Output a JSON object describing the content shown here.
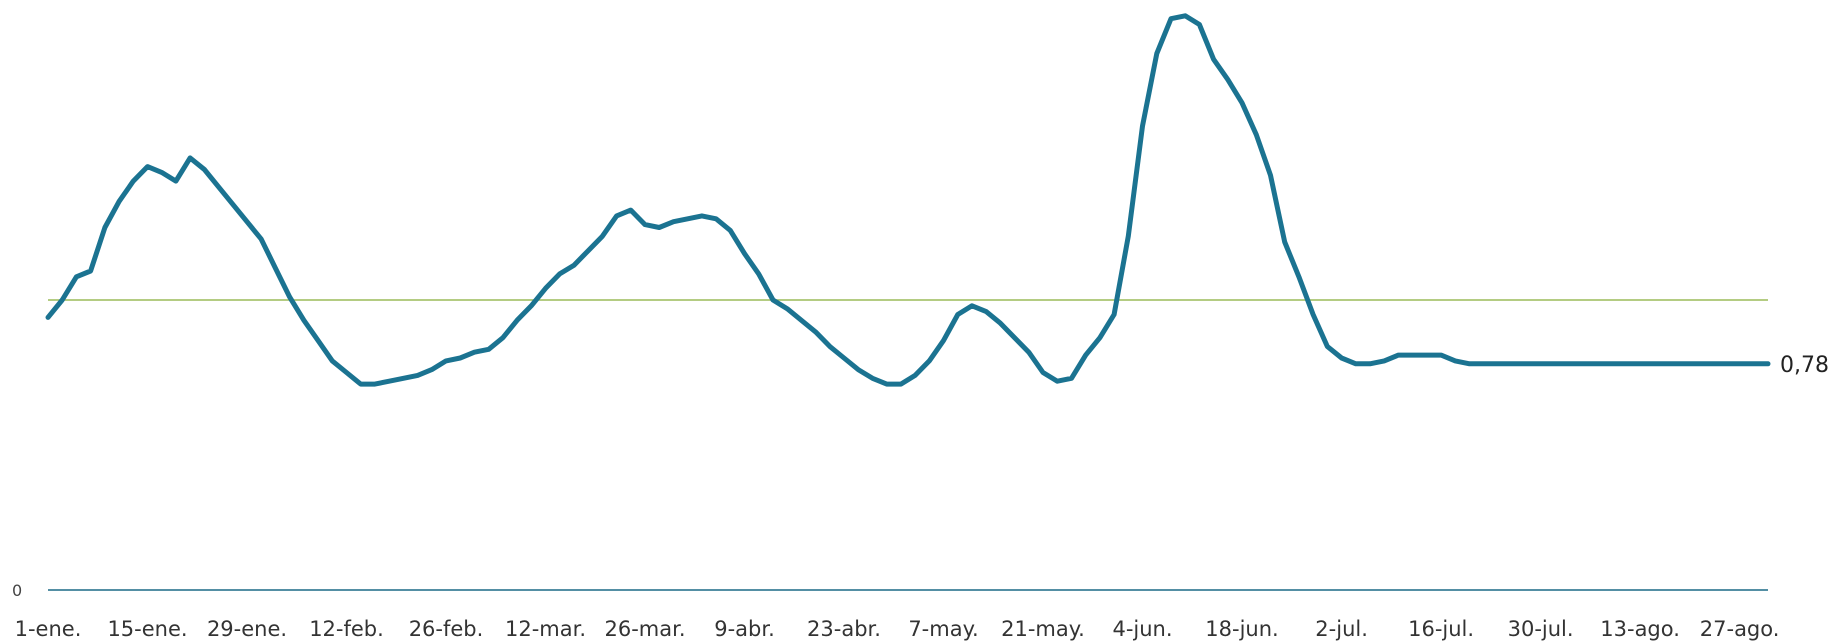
{
  "chart_data": {
    "type": "line",
    "x_tick_labels": [
      "1-ene.",
      "15-ene.",
      "29-ene.",
      "12-feb.",
      "26-feb.",
      "12-mar.",
      "26-mar.",
      "9-abr.",
      "23-abr.",
      "7-may.",
      "21-may.",
      "4-jun.",
      "18-jun.",
      "2-jul.",
      "16-jul.",
      "30-jul.",
      "13-ago.",
      "27-ago."
    ],
    "y_tick_labels": [
      "0"
    ],
    "ylim": [
      0,
      2.0
    ],
    "reference_line": 1.0,
    "end_label": "0,78",
    "grid": false,
    "colors": {
      "line": "#1b7391",
      "reference": "#9bbb59",
      "axis": "#1b6a85"
    },
    "series": [
      {
        "x_day": [
          0,
          2,
          4,
          6,
          8,
          10,
          12,
          14,
          16,
          18,
          20,
          22,
          24,
          26,
          28,
          30,
          32,
          34,
          36,
          38,
          40,
          42,
          44,
          46,
          48,
          50,
          52,
          54,
          56,
          58,
          60,
          62,
          64,
          66,
          68,
          70,
          72,
          74,
          76,
          78,
          80,
          82,
          84,
          86,
          88,
          90,
          92,
          94,
          96,
          98,
          100,
          102,
          104,
          106,
          108,
          110,
          112,
          114,
          116,
          118,
          120,
          122,
          124,
          126,
          128,
          130,
          132,
          134,
          136,
          138,
          140,
          142,
          144,
          146,
          148,
          150,
          152,
          154,
          156,
          158,
          160,
          162,
          164,
          166,
          168,
          170,
          172,
          174,
          176,
          178,
          180,
          182,
          184,
          186,
          188,
          190,
          192,
          194,
          196,
          198,
          200,
          202,
          204,
          206,
          208,
          210,
          212,
          214,
          216,
          218,
          220,
          222,
          224,
          226,
          228,
          230,
          232,
          234,
          236,
          238,
          240,
          242
        ],
        "values": [
          0.94,
          1.0,
          1.08,
          1.1,
          1.25,
          1.34,
          1.41,
          1.46,
          1.44,
          1.41,
          1.49,
          1.45,
          1.39,
          1.33,
          1.27,
          1.21,
          1.11,
          1.01,
          0.93,
          0.86,
          0.79,
          0.75,
          0.71,
          0.71,
          0.72,
          0.73,
          0.74,
          0.76,
          0.79,
          0.8,
          0.82,
          0.83,
          0.87,
          0.93,
          0.98,
          1.04,
          1.09,
          1.12,
          1.17,
          1.22,
          1.29,
          1.31,
          1.26,
          1.25,
          1.27,
          1.28,
          1.29,
          1.28,
          1.24,
          1.16,
          1.09,
          1.0,
          0.97,
          0.93,
          0.89,
          0.84,
          0.8,
          0.76,
          0.73,
          0.71,
          0.71,
          0.74,
          0.79,
          0.86,
          0.95,
          0.98,
          0.96,
          0.92,
          0.87,
          0.82,
          0.75,
          0.72,
          0.73,
          0.81,
          0.87,
          0.95,
          1.22,
          1.6,
          1.85,
          1.97,
          1.98,
          1.95,
          1.83,
          1.76,
          1.68,
          1.57,
          1.43,
          1.2,
          1.08,
          0.95,
          0.84,
          0.8,
          0.78,
          0.78,
          0.79,
          0.81,
          0.81,
          0.81,
          0.81,
          0.79,
          0.78,
          0.78,
          0.78,
          0.78,
          0.78,
          0.78,
          0.78,
          0.78,
          0.78,
          0.78,
          0.78,
          0.78,
          0.78,
          0.78,
          0.78,
          0.78,
          0.78,
          0.78,
          0.78,
          0.78,
          0.78,
          0.78
        ]
      }
    ]
  }
}
